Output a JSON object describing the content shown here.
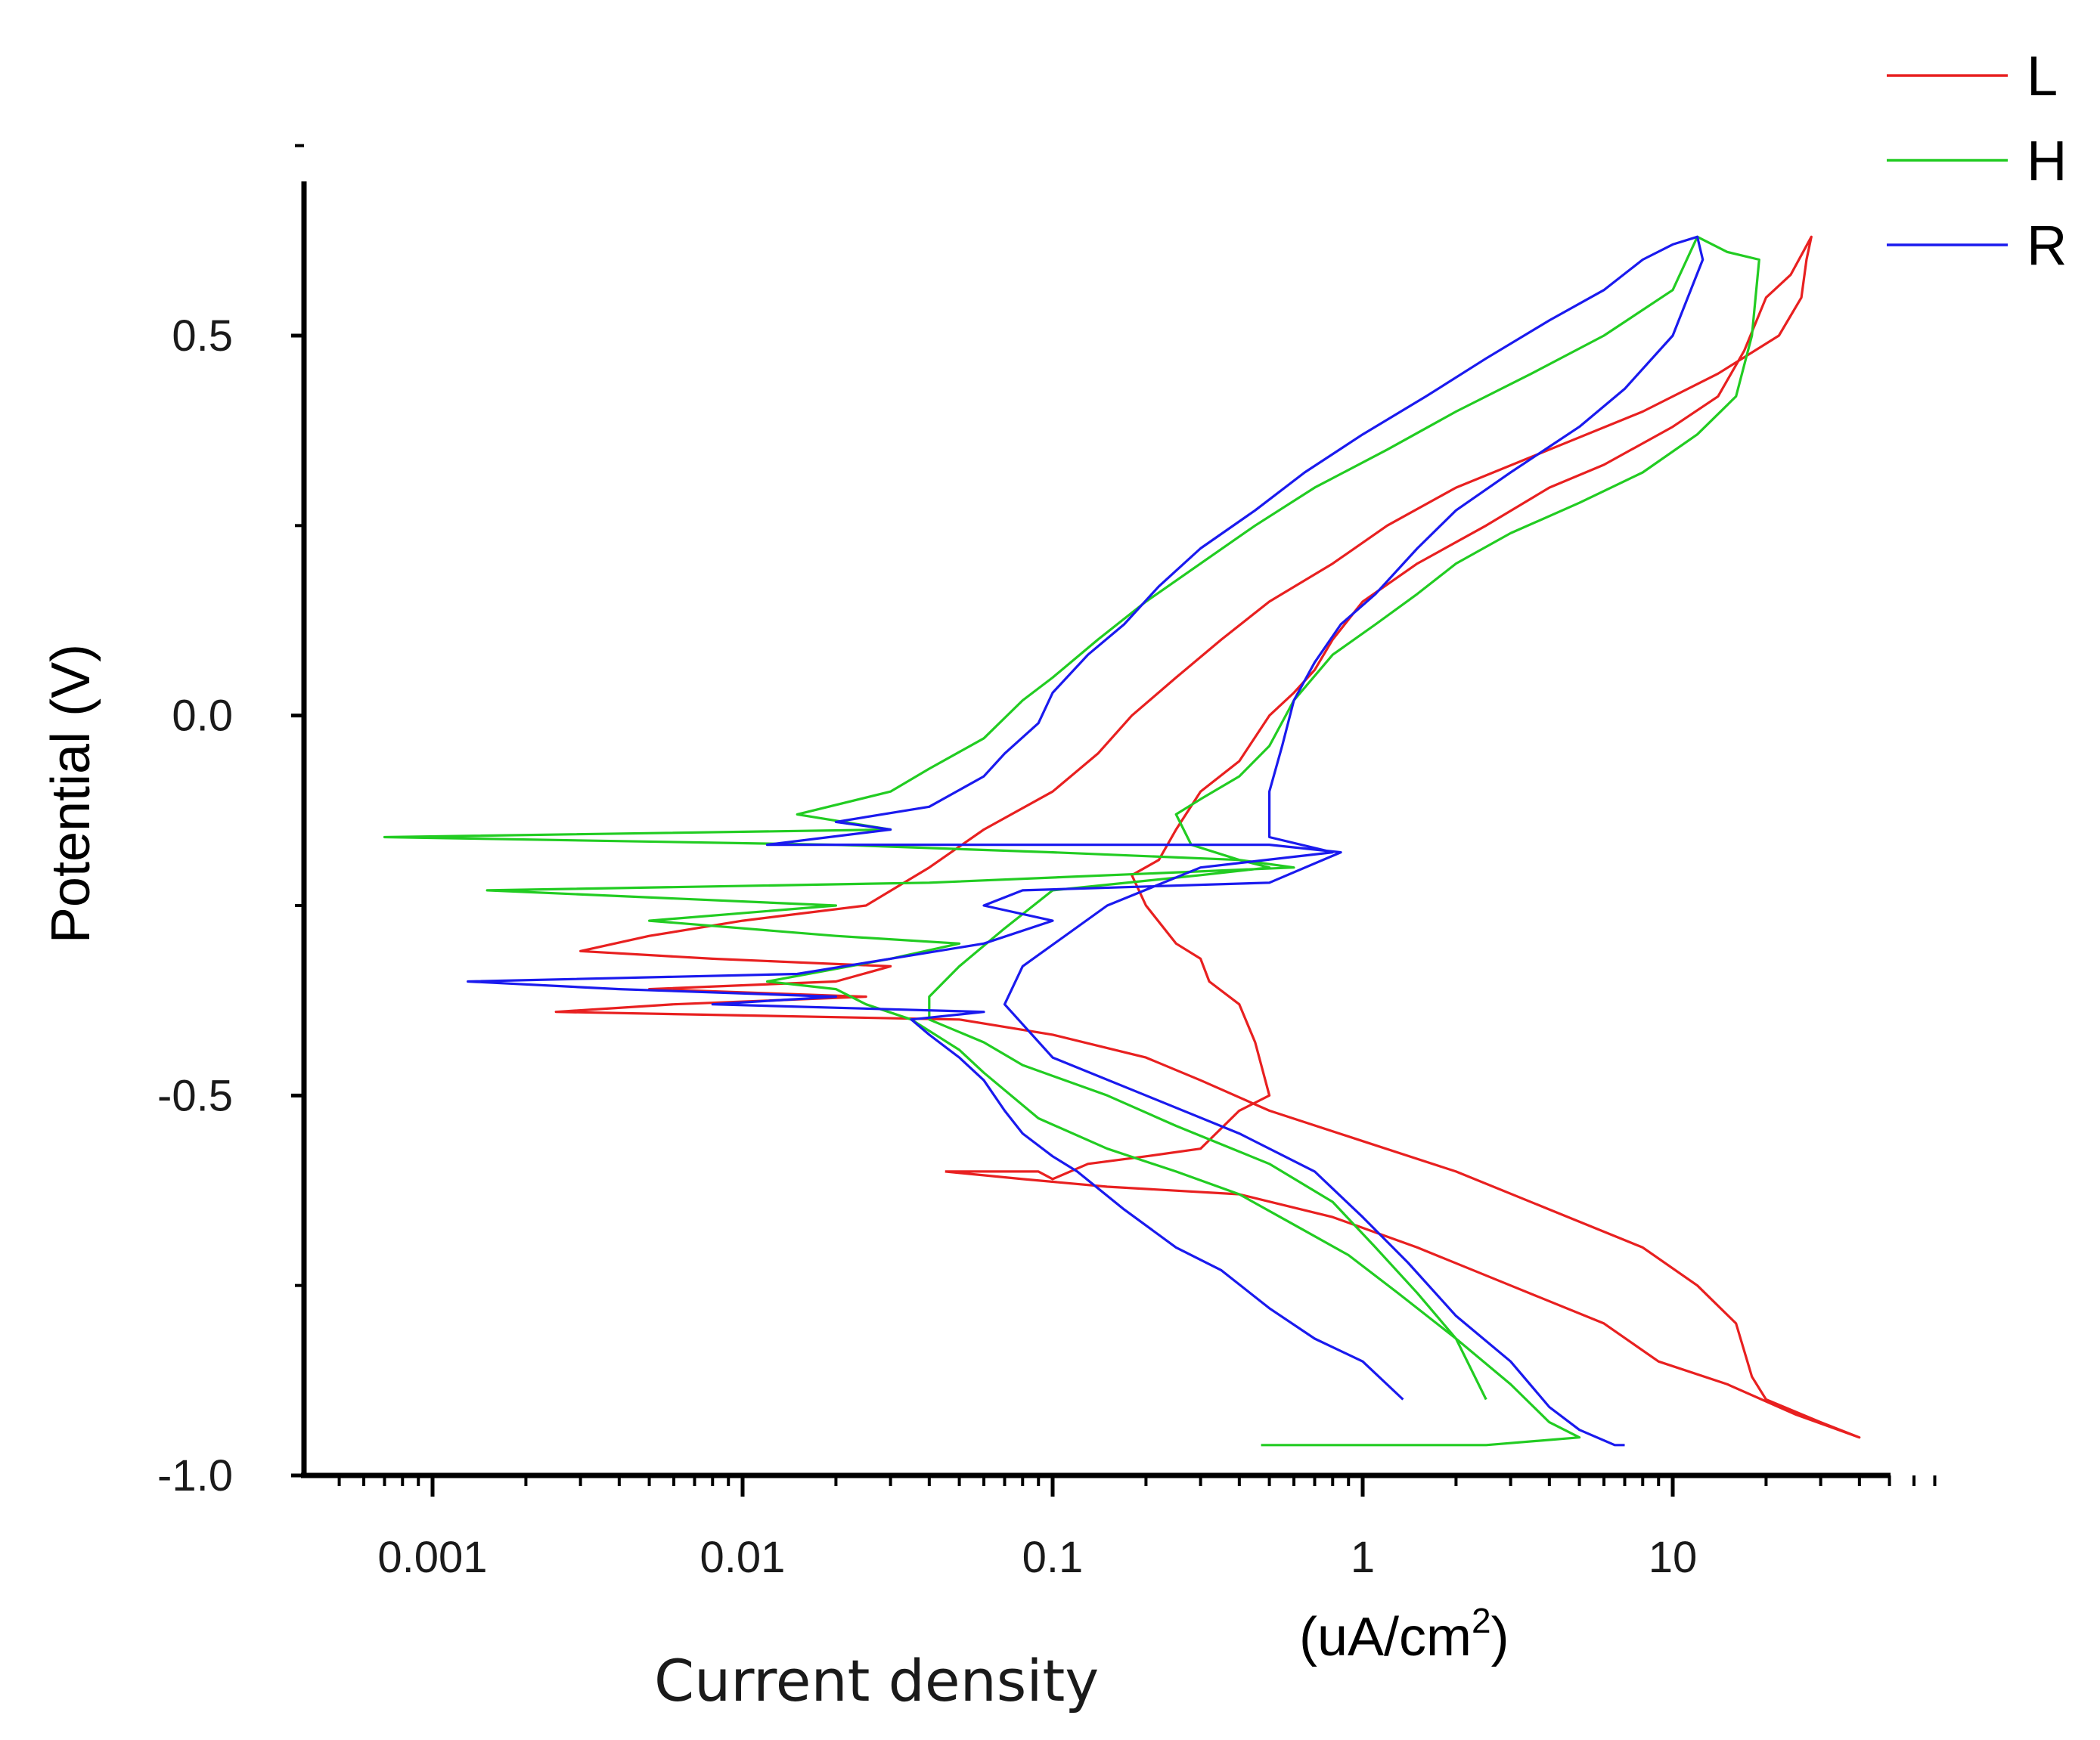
{
  "chart_data": {
    "type": "line",
    "title": "",
    "xlabel": "Current density",
    "xunit_label": "(uA/cm",
    "xunit_sup": "2",
    "xunit_close": ")",
    "ylabel": "Potential (V)",
    "xscale": "log",
    "xlim": [
      0.0005,
      70
    ],
    "ylim": [
      -1.0,
      0.7
    ],
    "x_ticks": [
      {
        "value": 0.001,
        "label": "0.001"
      },
      {
        "value": 0.01,
        "label": "0.01"
      },
      {
        "value": 0.1,
        "label": "0.1"
      },
      {
        "value": 1,
        "label": "1"
      },
      {
        "value": 10,
        "label": "10"
      }
    ],
    "y_ticks": [
      {
        "value": 0.5,
        "label": "0.5"
      },
      {
        "value": 0.0,
        "label": "0.0"
      },
      {
        "value": -0.5,
        "label": "-0.5"
      },
      {
        "value": -1.0,
        "label": "-1.0"
      }
    ],
    "y_minor_ticks": [
      0.75,
      0.25,
      -0.25,
      -0.75
    ],
    "legend_position": "top-right",
    "series": [
      {
        "name": "L",
        "color": "#e82020",
        "points": [
          [
            0.045,
            -0.6
          ],
          [
            0.09,
            -0.6
          ],
          [
            0.1,
            -0.61
          ],
          [
            0.13,
            -0.59
          ],
          [
            0.2,
            -0.58
          ],
          [
            0.3,
            -0.57
          ],
          [
            0.4,
            -0.52
          ],
          [
            0.5,
            -0.5
          ],
          [
            0.45,
            -0.43
          ],
          [
            0.4,
            -0.38
          ],
          [
            0.32,
            -0.35
          ],
          [
            0.3,
            -0.32
          ],
          [
            0.25,
            -0.3
          ],
          [
            0.2,
            -0.25
          ],
          [
            0.18,
            -0.21
          ],
          [
            0.22,
            -0.19
          ],
          [
            0.25,
            -0.15
          ],
          [
            0.3,
            -0.1
          ],
          [
            0.4,
            -0.06
          ],
          [
            0.5,
            0.0
          ],
          [
            0.6,
            0.03
          ],
          [
            0.7,
            0.06
          ],
          [
            0.8,
            0.1
          ],
          [
            1.0,
            0.15
          ],
          [
            1.5,
            0.2
          ],
          [
            2.5,
            0.25
          ],
          [
            4,
            0.3
          ],
          [
            6,
            0.33
          ],
          [
            10,
            0.38
          ],
          [
            14,
            0.42
          ],
          [
            17,
            0.48
          ],
          [
            20,
            0.55
          ],
          [
            24,
            0.58
          ],
          [
            28,
            0.63
          ],
          [
            27,
            0.6
          ],
          [
            26,
            0.55
          ],
          [
            22,
            0.5
          ],
          [
            14,
            0.45
          ],
          [
            8,
            0.4
          ],
          [
            4,
            0.35
          ],
          [
            2,
            0.3
          ],
          [
            1.2,
            0.25
          ],
          [
            0.8,
            0.2
          ],
          [
            0.5,
            0.15
          ],
          [
            0.35,
            0.1
          ],
          [
            0.25,
            0.05
          ],
          [
            0.18,
            0.0
          ],
          [
            0.14,
            -0.05
          ],
          [
            0.1,
            -0.1
          ],
          [
            0.06,
            -0.15
          ],
          [
            0.04,
            -0.2
          ],
          [
            0.025,
            -0.25
          ],
          [
            0.01,
            -0.27
          ],
          [
            0.005,
            -0.29
          ],
          [
            0.003,
            -0.31
          ],
          [
            0.008,
            -0.32
          ],
          [
            0.03,
            -0.33
          ],
          [
            0.02,
            -0.35
          ],
          [
            0.005,
            -0.36
          ],
          [
            0.025,
            -0.37
          ],
          [
            0.006,
            -0.38
          ],
          [
            0.0025,
            -0.39
          ],
          [
            0.05,
            -0.4
          ],
          [
            0.1,
            -0.42
          ],
          [
            0.2,
            -0.45
          ],
          [
            0.3,
            -0.48
          ],
          [
            0.5,
            -0.52
          ],
          [
            1,
            -0.56
          ],
          [
            2,
            -0.6
          ],
          [
            4,
            -0.65
          ],
          [
            8,
            -0.7
          ],
          [
            12,
            -0.75
          ],
          [
            16,
            -0.8
          ],
          [
            18,
            -0.87
          ],
          [
            20,
            -0.9
          ],
          [
            30,
            -0.93
          ],
          [
            40,
            -0.95
          ],
          [
            25,
            -0.92
          ],
          [
            15,
            -0.88
          ],
          [
            9,
            -0.85
          ],
          [
            6,
            -0.8
          ],
          [
            3,
            -0.75
          ],
          [
            1.5,
            -0.7
          ],
          [
            0.8,
            -0.66
          ],
          [
            0.4,
            -0.63
          ],
          [
            0.15,
            -0.62
          ],
          [
            0.08,
            -0.61
          ],
          [
            0.045,
            -0.6
          ]
        ]
      },
      {
        "name": "H",
        "color": "#22cc22",
        "points": [
          [
            0.47,
            -0.96
          ],
          [
            2.5,
            -0.96
          ],
          [
            5,
            -0.95
          ],
          [
            4,
            -0.93
          ],
          [
            3,
            -0.88
          ],
          [
            2,
            -0.82
          ],
          [
            1.3,
            -0.76
          ],
          [
            0.9,
            -0.71
          ],
          [
            0.6,
            -0.67
          ],
          [
            0.4,
            -0.63
          ],
          [
            0.25,
            -0.6
          ],
          [
            0.15,
            -0.57
          ],
          [
            0.09,
            -0.53
          ],
          [
            0.06,
            -0.47
          ],
          [
            0.05,
            -0.44
          ],
          [
            0.035,
            -0.4
          ],
          [
            0.025,
            -0.38
          ],
          [
            0.02,
            -0.36
          ],
          [
            0.012,
            -0.35
          ],
          [
            0.03,
            -0.32
          ],
          [
            0.05,
            -0.3
          ],
          [
            0.02,
            -0.29
          ],
          [
            0.005,
            -0.27
          ],
          [
            0.02,
            -0.25
          ],
          [
            0.0015,
            -0.23
          ],
          [
            0.04,
            -0.22
          ],
          [
            0.6,
            -0.2
          ],
          [
            0.4,
            -0.19
          ],
          [
            0.1,
            -0.18
          ],
          [
            0.02,
            -0.17
          ],
          [
            0.0007,
            -0.16
          ],
          [
            0.03,
            -0.15
          ],
          [
            0.015,
            -0.13
          ],
          [
            0.03,
            -0.1
          ],
          [
            0.04,
            -0.07
          ],
          [
            0.06,
            -0.03
          ],
          [
            0.08,
            0.02
          ],
          [
            0.1,
            0.05
          ],
          [
            0.14,
            0.1
          ],
          [
            0.2,
            0.15
          ],
          [
            0.3,
            0.2
          ],
          [
            0.45,
            0.25
          ],
          [
            0.7,
            0.3
          ],
          [
            1.2,
            0.35
          ],
          [
            2,
            0.4
          ],
          [
            3.5,
            0.45
          ],
          [
            6,
            0.5
          ],
          [
            10,
            0.56
          ],
          [
            12,
            0.63
          ],
          [
            15,
            0.61
          ],
          [
            19,
            0.6
          ],
          [
            18,
            0.5
          ],
          [
            16,
            0.42
          ],
          [
            12,
            0.37
          ],
          [
            8,
            0.32
          ],
          [
            5,
            0.28
          ],
          [
            3,
            0.24
          ],
          [
            2,
            0.2
          ],
          [
            1.5,
            0.16
          ],
          [
            1.1,
            0.12
          ],
          [
            0.8,
            0.08
          ],
          [
            0.6,
            0.02
          ],
          [
            0.5,
            -0.04
          ],
          [
            0.4,
            -0.08
          ],
          [
            0.3,
            -0.11
          ],
          [
            0.25,
            -0.13
          ],
          [
            0.28,
            -0.17
          ],
          [
            0.4,
            -0.19
          ],
          [
            0.5,
            -0.2
          ],
          [
            0.3,
            -0.21
          ],
          [
            0.1,
            -0.23
          ],
          [
            0.07,
            -0.28
          ],
          [
            0.05,
            -0.33
          ],
          [
            0.04,
            -0.37
          ],
          [
            0.04,
            -0.4
          ],
          [
            0.06,
            -0.43
          ],
          [
            0.08,
            -0.46
          ],
          [
            0.15,
            -0.5
          ],
          [
            0.25,
            -0.54
          ],
          [
            0.5,
            -0.59
          ],
          [
            0.8,
            -0.64
          ],
          [
            1.1,
            -0.7
          ],
          [
            1.5,
            -0.76
          ],
          [
            2,
            -0.82
          ],
          [
            2.5,
            -0.9
          ]
        ]
      },
      {
        "name": "R",
        "color": "#1a1aee",
        "points": [
          [
            1.35,
            -0.9
          ],
          [
            1,
            -0.85
          ],
          [
            0.7,
            -0.82
          ],
          [
            0.5,
            -0.78
          ],
          [
            0.35,
            -0.73
          ],
          [
            0.25,
            -0.7
          ],
          [
            0.17,
            -0.65
          ],
          [
            0.12,
            -0.6
          ],
          [
            0.1,
            -0.58
          ],
          [
            0.08,
            -0.55
          ],
          [
            0.07,
            -0.52
          ],
          [
            0.06,
            -0.48
          ],
          [
            0.05,
            -0.45
          ],
          [
            0.04,
            -0.42
          ],
          [
            0.035,
            -0.4
          ],
          [
            0.06,
            -0.39
          ],
          [
            0.008,
            -0.38
          ],
          [
            0.02,
            -0.37
          ],
          [
            0.004,
            -0.36
          ],
          [
            0.0013,
            -0.35
          ],
          [
            0.015,
            -0.34
          ],
          [
            0.06,
            -0.3
          ],
          [
            0.1,
            -0.27
          ],
          [
            0.06,
            -0.25
          ],
          [
            0.08,
            -0.23
          ],
          [
            0.5,
            -0.22
          ],
          [
            0.85,
            -0.18
          ],
          [
            0.5,
            -0.17
          ],
          [
            0.012,
            -0.17
          ],
          [
            0.03,
            -0.15
          ],
          [
            0.02,
            -0.14
          ],
          [
            0.04,
            -0.12
          ],
          [
            0.06,
            -0.08
          ],
          [
            0.07,
            -0.05
          ],
          [
            0.09,
            -0.01
          ],
          [
            0.1,
            0.03
          ],
          [
            0.13,
            0.08
          ],
          [
            0.17,
            0.12
          ],
          [
            0.22,
            0.17
          ],
          [
            0.3,
            0.22
          ],
          [
            0.45,
            0.27
          ],
          [
            0.65,
            0.32
          ],
          [
            1,
            0.37
          ],
          [
            1.6,
            0.42
          ],
          [
            2.5,
            0.47
          ],
          [
            4,
            0.52
          ],
          [
            6,
            0.56
          ],
          [
            8,
            0.6
          ],
          [
            10,
            0.62
          ],
          [
            12,
            0.63
          ],
          [
            12.5,
            0.6
          ],
          [
            10,
            0.5
          ],
          [
            7,
            0.43
          ],
          [
            5,
            0.38
          ],
          [
            3,
            0.32
          ],
          [
            2,
            0.27
          ],
          [
            1.5,
            0.22
          ],
          [
            1.1,
            0.16
          ],
          [
            0.85,
            0.12
          ],
          [
            0.7,
            0.07
          ],
          [
            0.6,
            0.02
          ],
          [
            0.55,
            -0.04
          ],
          [
            0.5,
            -0.1
          ],
          [
            0.5,
            -0.14
          ],
          [
            0.5,
            -0.16
          ],
          [
            0.8,
            -0.18
          ],
          [
            0.3,
            -0.2
          ],
          [
            0.15,
            -0.25
          ],
          [
            0.08,
            -0.33
          ],
          [
            0.07,
            -0.38
          ],
          [
            0.1,
            -0.45
          ],
          [
            0.2,
            -0.5
          ],
          [
            0.4,
            -0.55
          ],
          [
            0.7,
            -0.6
          ],
          [
            1,
            -0.66
          ],
          [
            1.4,
            -0.72
          ],
          [
            2,
            -0.79
          ],
          [
            3,
            -0.85
          ],
          [
            4,
            -0.91
          ],
          [
            5,
            -0.94
          ],
          [
            6.5,
            -0.96
          ],
          [
            7,
            -0.96
          ]
        ]
      }
    ]
  }
}
